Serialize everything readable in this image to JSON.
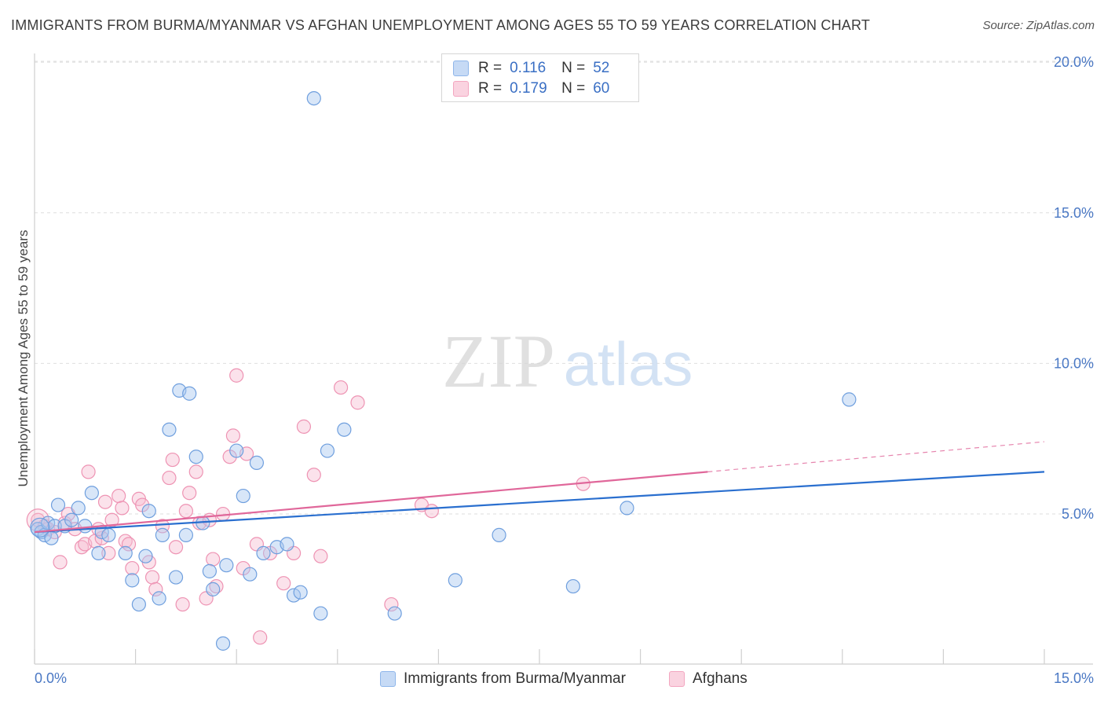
{
  "title": "IMMIGRANTS FROM BURMA/MYANMAR VS AFGHAN UNEMPLOYMENT AMONG AGES 55 TO 59 YEARS CORRELATION CHART",
  "source": "Source: ZipAtlas.com",
  "watermark": {
    "zip": "ZIP",
    "atlas": "atlas"
  },
  "stats": [
    {
      "r_label": "R =",
      "r_value": "0.116",
      "n_label": "N =",
      "n_value": "52",
      "color": "#8fb6ea"
    },
    {
      "r_label": "R =",
      "r_value": "0.179",
      "n_label": "N =",
      "n_value": "60",
      "color": "#f3a6c0"
    }
  ],
  "colors": {
    "blue_fill": "#a8c8f0",
    "blue_stroke": "#6f9fde",
    "blue_line": "#2a6fcf",
    "pink_fill": "#f7bfd2",
    "pink_stroke": "#ee93b3",
    "pink_line": "#e0679a",
    "axis_text": "#4a78c4",
    "grid": "#dedede"
  },
  "chart_data": {
    "type": "scatter",
    "title": "IMMIGRANTS FROM BURMA/MYANMAR VS AFGHAN UNEMPLOYMENT AMONG AGES 55 TO 59 YEARS CORRELATION CHART",
    "xlabel": "",
    "ylabel": "Unemployment Among Ages 55 to 59 years",
    "xlim": [
      0,
      15
    ],
    "ylim": [
      0,
      20
    ],
    "x_tick_labels": [
      "0.0%",
      "15.0%"
    ],
    "y_ticks": [
      5,
      10,
      15,
      20
    ],
    "y_tick_labels": [
      "5.0%",
      "10.0%",
      "15.0%",
      "20.0%"
    ],
    "legend_position": "bottom-center",
    "series": [
      {
        "name": "Immigrants from Burma/Myanmar",
        "color": "#a8c8f0",
        "trend": {
          "x0": 0,
          "y0": 4.4,
          "x1": 15,
          "y1": 6.4
        },
        "points": [
          [
            0.05,
            4.5
          ],
          [
            0.1,
            4.4
          ],
          [
            0.15,
            4.3
          ],
          [
            0.2,
            4.7
          ],
          [
            0.3,
            4.6
          ],
          [
            0.35,
            5.3
          ],
          [
            0.45,
            4.6
          ],
          [
            0.55,
            4.8
          ],
          [
            0.65,
            5.2
          ],
          [
            0.75,
            4.6
          ],
          [
            0.85,
            5.7
          ],
          [
            0.95,
            3.7
          ],
          [
            1.0,
            4.4
          ],
          [
            1.1,
            4.3
          ],
          [
            1.35,
            3.7
          ],
          [
            1.45,
            2.8
          ],
          [
            1.55,
            2.0
          ],
          [
            1.65,
            3.6
          ],
          [
            1.7,
            5.1
          ],
          [
            1.85,
            2.2
          ],
          [
            1.9,
            4.3
          ],
          [
            2.0,
            7.8
          ],
          [
            2.1,
            2.9
          ],
          [
            2.15,
            9.1
          ],
          [
            2.25,
            4.3
          ],
          [
            2.3,
            9.0
          ],
          [
            2.4,
            6.9
          ],
          [
            2.5,
            4.7
          ],
          [
            2.6,
            3.1
          ],
          [
            2.65,
            2.5
          ],
          [
            2.8,
            0.7
          ],
          [
            2.85,
            3.3
          ],
          [
            3.0,
            7.1
          ],
          [
            3.1,
            5.6
          ],
          [
            3.2,
            3.0
          ],
          [
            3.3,
            6.7
          ],
          [
            3.4,
            3.7
          ],
          [
            3.6,
            3.9
          ],
          [
            3.75,
            4.0
          ],
          [
            3.85,
            2.3
          ],
          [
            3.95,
            2.4
          ],
          [
            4.15,
            18.8
          ],
          [
            4.25,
            1.7
          ],
          [
            4.35,
            7.1
          ],
          [
            4.6,
            7.8
          ],
          [
            5.35,
            1.7
          ],
          [
            6.25,
            2.8
          ],
          [
            6.9,
            4.3
          ],
          [
            8.0,
            2.6
          ],
          [
            8.8,
            5.2
          ],
          [
            12.1,
            8.8
          ],
          [
            0.25,
            4.2
          ]
        ]
      },
      {
        "name": "Afghans",
        "color": "#f7bfd2",
        "trend": {
          "x0": 0,
          "y0": 4.4,
          "x1": 10.0,
          "y1": 6.4,
          "dashed_to_x": 15,
          "dashed_to_y": 7.4
        },
        "points": [
          [
            0.05,
            4.8
          ],
          [
            0.15,
            4.6
          ],
          [
            0.2,
            4.5
          ],
          [
            0.3,
            4.4
          ],
          [
            0.38,
            3.4
          ],
          [
            0.45,
            4.7
          ],
          [
            0.5,
            5.0
          ],
          [
            0.6,
            4.5
          ],
          [
            0.7,
            3.9
          ],
          [
            0.75,
            4.0
          ],
          [
            0.8,
            6.4
          ],
          [
            0.9,
            4.1
          ],
          [
            1.0,
            4.2
          ],
          [
            1.05,
            5.4
          ],
          [
            1.1,
            3.7
          ],
          [
            1.15,
            4.8
          ],
          [
            1.25,
            5.6
          ],
          [
            1.3,
            5.2
          ],
          [
            1.35,
            4.1
          ],
          [
            1.45,
            3.2
          ],
          [
            1.55,
            5.5
          ],
          [
            1.6,
            5.3
          ],
          [
            1.7,
            3.4
          ],
          [
            1.75,
            2.9
          ],
          [
            1.8,
            2.5
          ],
          [
            1.9,
            4.6
          ],
          [
            2.0,
            6.2
          ],
          [
            2.05,
            6.8
          ],
          [
            2.1,
            3.9
          ],
          [
            2.2,
            2.0
          ],
          [
            2.25,
            5.1
          ],
          [
            2.3,
            5.7
          ],
          [
            2.4,
            6.4
          ],
          [
            2.45,
            4.7
          ],
          [
            2.55,
            2.2
          ],
          [
            2.65,
            3.5
          ],
          [
            2.7,
            2.6
          ],
          [
            2.8,
            5.0
          ],
          [
            2.9,
            6.9
          ],
          [
            2.95,
            7.6
          ],
          [
            3.0,
            9.6
          ],
          [
            3.1,
            3.2
          ],
          [
            3.15,
            7.0
          ],
          [
            3.3,
            4.0
          ],
          [
            3.35,
            0.9
          ],
          [
            3.5,
            3.7
          ],
          [
            3.7,
            2.7
          ],
          [
            3.85,
            3.7
          ],
          [
            4.0,
            7.9
          ],
          [
            4.15,
            6.3
          ],
          [
            4.25,
            3.6
          ],
          [
            4.55,
            9.2
          ],
          [
            4.8,
            8.7
          ],
          [
            5.3,
            2.0
          ],
          [
            5.75,
            5.3
          ],
          [
            5.9,
            5.1
          ],
          [
            8.15,
            6.0
          ],
          [
            0.95,
            4.5
          ],
          [
            1.4,
            4.0
          ],
          [
            2.6,
            4.8
          ]
        ]
      }
    ]
  }
}
